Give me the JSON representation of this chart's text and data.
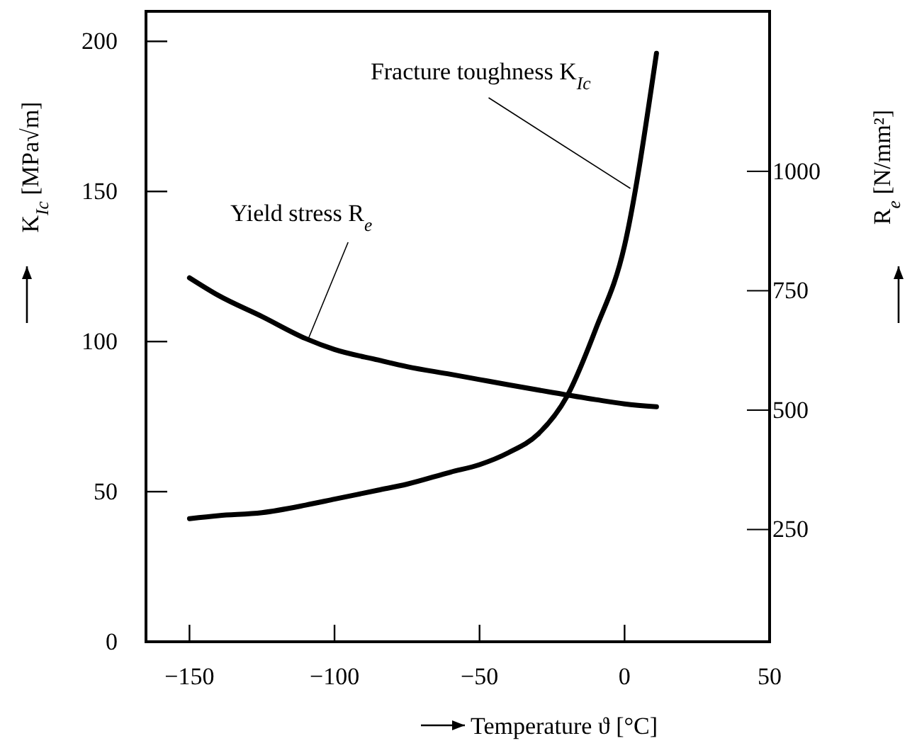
{
  "chart_data": {
    "type": "line",
    "xlabel": "Temperature ϑ [°C]",
    "ylabel": "K$_{Ic}$ [MPa√m]",
    "y2label": "R$_{e}$ [N/mm²]",
    "xlim": [
      -165,
      50
    ],
    "xticks": [
      -150,
      -100,
      -50,
      0,
      50
    ],
    "ylim": [
      0,
      210
    ],
    "yticks": [
      0,
      50,
      100,
      150,
      200
    ],
    "y2lim": [
      15,
      1335
    ],
    "y2ticks": [
      250,
      500,
      750,
      1000
    ],
    "marker": "none",
    "line_style": "solid",
    "series": [
      {
        "color": "#000000",
        "x": [
          -150,
          -140,
          -125,
          -110,
          -100,
          -85,
          -75,
          -60,
          -50,
          -40,
          -30,
          -20,
          -10,
          0,
          11
        ],
        "values": [
          41,
          42,
          43,
          45.5,
          47.5,
          50.5,
          52.5,
          56.5,
          59,
          63,
          69,
          81.5,
          104,
          132,
          196
        ]
      },
      {
        "axis": "y2",
        "color": "#000000",
        "x": [
          -150,
          -140,
          -125,
          -110,
          -100,
          -85,
          -75,
          -60,
          -50,
          -40,
          -25,
          -10,
          0,
          11
        ],
        "values": [
          777,
          740,
          696,
          650,
          627,
          605,
          591,
          575,
          564,
          553,
          537,
          522,
          513,
          507
        ]
      }
    ],
    "annotations": [
      {
        "text": "Fracture toughness K$_{Ic}$",
        "x": 2,
        "y": 151
      },
      {
        "text": "Yield stress R$_{e}$",
        "x": -109,
        "y": 101
      }
    ]
  }
}
